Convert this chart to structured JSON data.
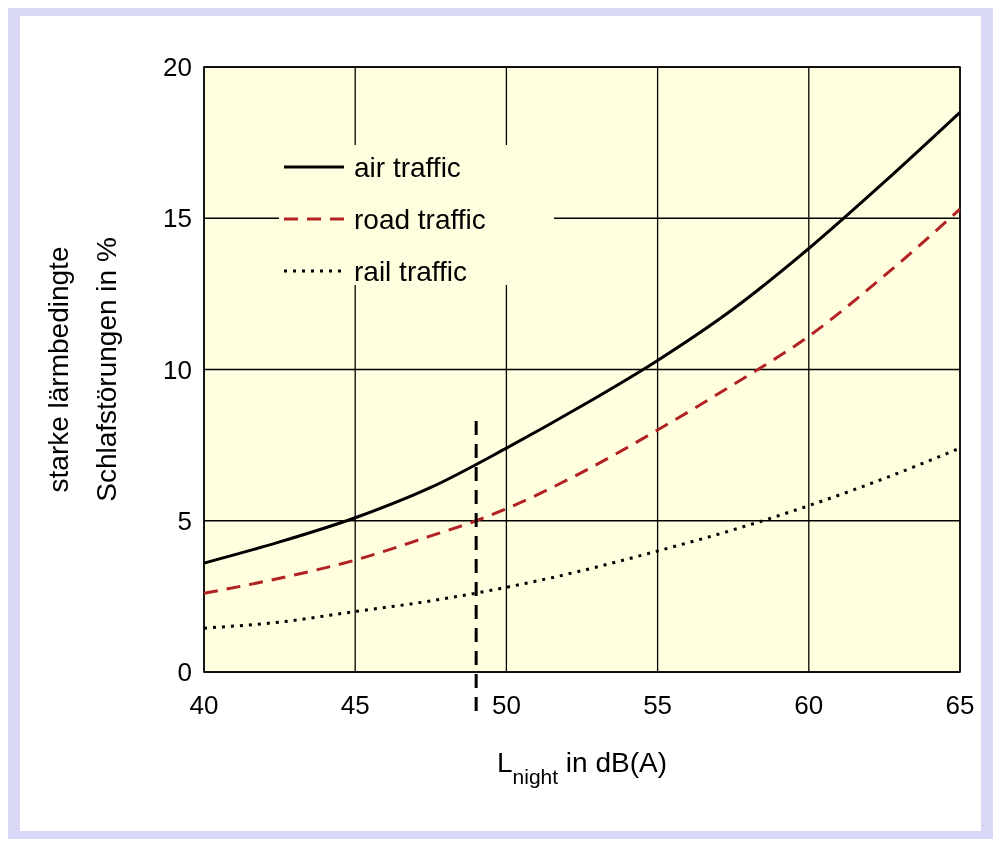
{
  "chart_data": {
    "type": "line",
    "xlabel": "L$_{night}$ in dB(A)",
    "ylabel": "starke lärmbedingte\nSchlafstörungen in %",
    "xlim": [
      40,
      65
    ],
    "ylim": [
      0,
      20
    ],
    "xticks": [
      40,
      45,
      50,
      55,
      60,
      65
    ],
    "yticks": [
      0,
      5,
      10,
      15,
      20
    ],
    "grid": true,
    "legend": "top left",
    "series": [
      {
        "name": "air traffic",
        "color": "#000000",
        "line_style": "solid",
        "x": [
          40,
          42.5,
          45,
          47.5,
          50,
          52.5,
          55,
          57.5,
          60,
          62.5,
          65
        ],
        "values": [
          3.6,
          4.3,
          5.1,
          6.1,
          7.4,
          8.8,
          10.3,
          12.0,
          14.0,
          16.2,
          18.5
        ]
      },
      {
        "name": "road traffic",
        "color": "#b22222",
        "line_style": "dashed",
        "x": [
          40,
          42.5,
          45,
          47.5,
          49,
          50,
          52.5,
          55,
          57.5,
          60,
          62.5,
          65
        ],
        "values": [
          2.6,
          3.1,
          3.7,
          4.5,
          5.0,
          5.4,
          6.6,
          8.0,
          9.5,
          11.1,
          13.1,
          15.3
        ]
      },
      {
        "name": "rail traffic",
        "color": "#000000",
        "line_style": "dotted",
        "x": [
          40,
          42.5,
          45,
          47.5,
          50,
          52.5,
          55,
          57.5,
          60,
          62.5,
          65
        ],
        "values": [
          1.45,
          1.65,
          2.0,
          2.35,
          2.8,
          3.35,
          4.0,
          4.7,
          5.5,
          6.4,
          7.4
        ]
      }
    ],
    "ref_lines": [
      {
        "axis": "x",
        "value": 49,
        "color": "#000000",
        "line_style": "dashed"
      }
    ]
  }
}
